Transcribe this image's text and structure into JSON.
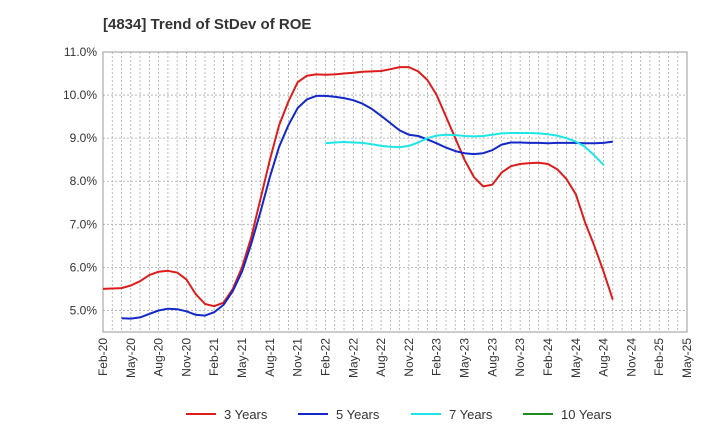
{
  "chart_data": {
    "type": "line",
    "title": "[4834]  Trend of StDev of ROE",
    "xlabel": "",
    "ylabel": "",
    "ylim": [
      4.5,
      11.0
    ],
    "yticks": [
      5.0,
      6.0,
      7.0,
      8.0,
      9.0,
      10.0,
      11.0
    ],
    "ytick_labels": [
      "5.0%",
      "6.0%",
      "7.0%",
      "8.0%",
      "9.0%",
      "10.0%",
      "11.0%"
    ],
    "xticks": [
      "Feb-20",
      "May-20",
      "Aug-20",
      "Nov-20",
      "Feb-21",
      "May-21",
      "Aug-21",
      "Nov-21",
      "Feb-22",
      "May-22",
      "Aug-22",
      "Nov-22",
      "Feb-23",
      "May-23",
      "Aug-23",
      "Nov-23",
      "Feb-24",
      "May-24",
      "Aug-24",
      "Nov-24",
      "Feb-25",
      "May-25"
    ],
    "grid": true,
    "legend_position": "bottom",
    "series": [
      {
        "name": "3 Years",
        "color": "#dd1c1c",
        "points": [
          [
            0,
            5.5
          ],
          [
            1,
            5.51
          ],
          [
            2,
            5.52
          ],
          [
            3,
            5.58
          ],
          [
            4,
            5.68
          ],
          [
            5,
            5.82
          ],
          [
            6,
            5.9
          ],
          [
            7,
            5.92
          ],
          [
            8,
            5.88
          ],
          [
            9,
            5.72
          ],
          [
            10,
            5.38
          ],
          [
            11,
            5.15
          ],
          [
            12,
            5.1
          ],
          [
            13,
            5.18
          ],
          [
            14,
            5.5
          ],
          [
            15,
            6.0
          ],
          [
            16,
            6.7
          ],
          [
            17,
            7.6
          ],
          [
            18,
            8.5
          ],
          [
            19,
            9.3
          ],
          [
            20,
            9.85
          ],
          [
            21,
            10.3
          ],
          [
            22,
            10.45
          ],
          [
            23,
            10.48
          ],
          [
            24,
            10.47
          ],
          [
            25,
            10.48
          ],
          [
            26,
            10.5
          ],
          [
            27,
            10.52
          ],
          [
            28,
            10.54
          ],
          [
            29,
            10.55
          ],
          [
            30,
            10.56
          ],
          [
            31,
            10.6
          ],
          [
            32,
            10.65
          ],
          [
            33,
            10.65
          ],
          [
            34,
            10.55
          ],
          [
            35,
            10.35
          ],
          [
            36,
            10.0
          ],
          [
            37,
            9.5
          ],
          [
            38,
            9.0
          ],
          [
            39,
            8.5
          ],
          [
            40,
            8.1
          ],
          [
            41,
            7.88
          ],
          [
            42,
            7.92
          ],
          [
            43,
            8.2
          ],
          [
            44,
            8.35
          ],
          [
            45,
            8.4
          ],
          [
            46,
            8.42
          ],
          [
            47,
            8.43
          ],
          [
            48,
            8.4
          ],
          [
            49,
            8.28
          ],
          [
            50,
            8.05
          ],
          [
            51,
            7.7
          ],
          [
            52,
            7.05
          ],
          [
            53,
            6.5
          ],
          [
            54,
            5.9
          ],
          [
            55,
            5.25
          ]
        ]
      },
      {
        "name": "5 Years",
        "color": "#1428c8",
        "points": [
          [
            2,
            4.82
          ],
          [
            3,
            4.81
          ],
          [
            4,
            4.84
          ],
          [
            5,
            4.92
          ],
          [
            6,
            5.0
          ],
          [
            7,
            5.04
          ],
          [
            8,
            5.03
          ],
          [
            9,
            4.98
          ],
          [
            10,
            4.9
          ],
          [
            11,
            4.88
          ],
          [
            12,
            4.96
          ],
          [
            13,
            5.13
          ],
          [
            14,
            5.45
          ],
          [
            15,
            5.9
          ],
          [
            16,
            6.55
          ],
          [
            17,
            7.3
          ],
          [
            18,
            8.1
          ],
          [
            19,
            8.8
          ],
          [
            20,
            9.3
          ],
          [
            21,
            9.7
          ],
          [
            22,
            9.9
          ],
          [
            23,
            9.98
          ],
          [
            24,
            9.98
          ],
          [
            25,
            9.96
          ],
          [
            26,
            9.93
          ],
          [
            27,
            9.88
          ],
          [
            28,
            9.8
          ],
          [
            29,
            9.68
          ],
          [
            30,
            9.52
          ],
          [
            31,
            9.35
          ],
          [
            32,
            9.18
          ],
          [
            33,
            9.08
          ],
          [
            34,
            9.05
          ],
          [
            35,
            8.97
          ],
          [
            36,
            8.88
          ],
          [
            37,
            8.78
          ],
          [
            38,
            8.7
          ],
          [
            39,
            8.65
          ],
          [
            40,
            8.63
          ],
          [
            41,
            8.65
          ],
          [
            42,
            8.72
          ],
          [
            43,
            8.85
          ],
          [
            44,
            8.9
          ],
          [
            45,
            8.9
          ],
          [
            46,
            8.89
          ],
          [
            47,
            8.89
          ],
          [
            48,
            8.88
          ],
          [
            49,
            8.89
          ],
          [
            50,
            8.89
          ],
          [
            51,
            8.89
          ],
          [
            52,
            8.88
          ],
          [
            53,
            8.88
          ],
          [
            54,
            8.89
          ],
          [
            55,
            8.92
          ]
        ]
      },
      {
        "name": "7 Years",
        "color": "#1ee6e6",
        "points": [
          [
            24,
            8.88
          ],
          [
            25,
            8.9
          ],
          [
            26,
            8.91
          ],
          [
            27,
            8.9
          ],
          [
            28,
            8.89
          ],
          [
            29,
            8.86
          ],
          [
            30,
            8.82
          ],
          [
            31,
            8.8
          ],
          [
            32,
            8.79
          ],
          [
            33,
            8.82
          ],
          [
            34,
            8.9
          ],
          [
            35,
            9.0
          ],
          [
            36,
            9.06
          ],
          [
            37,
            9.08
          ],
          [
            38,
            9.07
          ],
          [
            39,
            9.05
          ],
          [
            40,
            9.04
          ],
          [
            41,
            9.05
          ],
          [
            42,
            9.08
          ],
          [
            43,
            9.11
          ],
          [
            44,
            9.12
          ],
          [
            45,
            9.12
          ],
          [
            46,
            9.12
          ],
          [
            47,
            9.11
          ],
          [
            48,
            9.09
          ],
          [
            49,
            9.06
          ],
          [
            50,
            9.0
          ],
          [
            51,
            8.92
          ],
          [
            52,
            8.8
          ],
          [
            53,
            8.6
          ],
          [
            54,
            8.38
          ]
        ]
      },
      {
        "name": "10 Years",
        "color": "#1e8c1e",
        "points": []
      }
    ]
  }
}
